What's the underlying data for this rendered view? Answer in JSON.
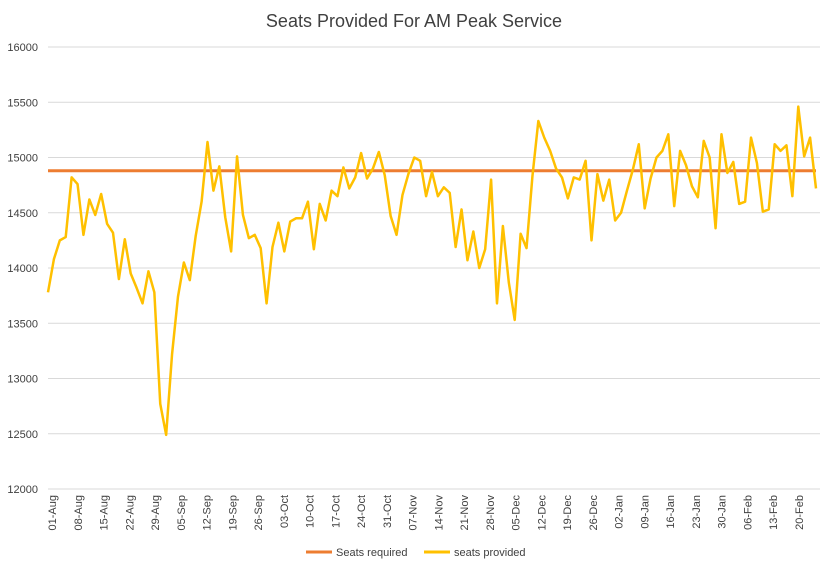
{
  "chart_data": {
    "type": "line",
    "title": "Seats Provided For AM Peak Service",
    "xlabel": "",
    "ylabel": "",
    "ylim": [
      12000,
      16000
    ],
    "y_ticks": [
      12000,
      12500,
      13000,
      13500,
      14000,
      14500,
      15000,
      15500,
      16000
    ],
    "x_tick_labels": [
      "01-Aug",
      "08-Aug",
      "15-Aug",
      "22-Aug",
      "29-Aug",
      "05-Sep",
      "12-Sep",
      "19-Sep",
      "26-Sep",
      "03-Oct",
      "10-Oct",
      "17-Oct",
      "24-Oct",
      "31-Oct",
      "07-Nov",
      "14-Nov",
      "21-Nov",
      "28-Nov",
      "05-Dec",
      "12-Dec",
      "19-Dec",
      "26-Dec",
      "02-Jan",
      "09-Jan",
      "16-Jan",
      "23-Jan",
      "30-Jan",
      "06-Feb",
      "13-Feb",
      "20-Feb"
    ],
    "grid": "horizontal",
    "legend_position": "bottom",
    "series": [
      {
        "name": "Seats required",
        "color": "#ED7D31",
        "values": [
          14880,
          14880
        ]
      },
      {
        "name": "seats provided",
        "color": "#FFC000",
        "values": [
          13780,
          14080,
          14250,
          14280,
          14820,
          14760,
          14300,
          14620,
          14480,
          14670,
          14400,
          14320,
          13900,
          14260,
          13950,
          13820,
          13680,
          13970,
          13780,
          12770,
          12490,
          13220,
          13740,
          14050,
          13890,
          14290,
          14600,
          15140,
          14700,
          14920,
          14460,
          14150,
          15010,
          14480,
          14270,
          14300,
          14180,
          13680,
          14190,
          14410,
          14150,
          14420,
          14450,
          14450,
          14600,
          14170,
          14580,
          14430,
          14700,
          14650,
          14910,
          14720,
          14820,
          15040,
          14810,
          14900,
          15050,
          14840,
          14470,
          14300,
          14660,
          14850,
          15000,
          14970,
          14650,
          14870,
          14650,
          14730,
          14680,
          14190,
          14530,
          14070,
          14330,
          14000,
          14170,
          14800,
          13680,
          14380,
          13870,
          13530,
          14310,
          14180,
          14830,
          15330,
          15180,
          15060,
          14900,
          14820,
          14630,
          14820,
          14800,
          14970,
          14250,
          14850,
          14610,
          14800,
          14430,
          14500,
          14700,
          14890,
          15120,
          14540,
          14810,
          15000,
          15060,
          15210,
          14560,
          15060,
          14930,
          14740,
          14640,
          15150,
          15000,
          14360,
          15210,
          14860,
          14960,
          14580,
          14600,
          15180,
          14950,
          14510,
          14530,
          15120,
          15060,
          15110,
          14650,
          15460,
          15010,
          15180,
          14720
        ]
      }
    ]
  }
}
